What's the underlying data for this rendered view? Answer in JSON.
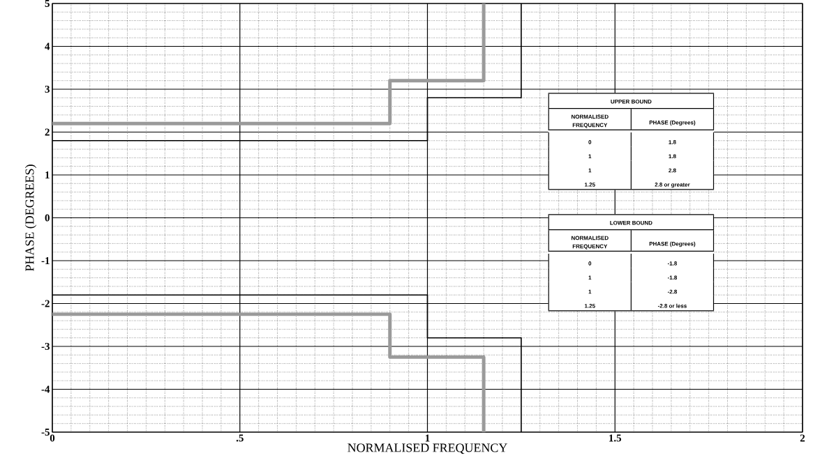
{
  "chart_data": {
    "type": "line",
    "xlabel": "NORMALISED FREQUENCY",
    "ylabel": "PHASE (DEGREES)",
    "xlim": [
      0,
      2
    ],
    "ylim": [
      -5,
      5
    ],
    "xticks": [
      0,
      {
        "value": 0.5,
        "label": ".5"
      },
      1,
      1.5,
      2
    ],
    "yticks": [
      -5,
      -4,
      -3,
      -2,
      -1,
      0,
      1,
      2,
      3,
      4,
      5
    ],
    "grid": true,
    "marker": "none",
    "line_style": "solid",
    "series": [
      {
        "color": "#9a9a9a",
        "x": [
          0,
          0.9,
          0.9,
          1.15,
          1.15
        ],
        "values": [
          2.2,
          2.2,
          3.2,
          3.2,
          5
        ]
      },
      {
        "color": "#9a9a9a",
        "x": [
          0,
          0.9,
          0.9,
          1.15,
          1.15
        ],
        "values": [
          -2.25,
          -2.25,
          -3.25,
          -3.25,
          -5
        ]
      },
      {
        "color": "#000000",
        "x": [
          0,
          1,
          1,
          1.25,
          1.25
        ],
        "values": [
          1.8,
          1.8,
          2.8,
          2.8,
          5
        ]
      },
      {
        "color": "#000000",
        "x": [
          0,
          1,
          1,
          1.25,
          1.25
        ],
        "values": [
          -1.8,
          -1.8,
          -2.8,
          -2.8,
          -5
        ]
      }
    ],
    "annotations": [
      "UPPER BOUND",
      "NORMALISED FREQUENCY",
      "PHASE (Degrees)",
      "0",
      "1",
      "1",
      "1.25",
      "1.8",
      "1.8",
      "2.8",
      "2.8 or greater",
      "LOWER BOUND",
      "NORMALISED FREQUENCY",
      "PHASE (Degrees)",
      "0",
      "1",
      "1",
      "1.25",
      "-1.8",
      "-1.8",
      "-2.8",
      "-2.8 or less"
    ]
  }
}
